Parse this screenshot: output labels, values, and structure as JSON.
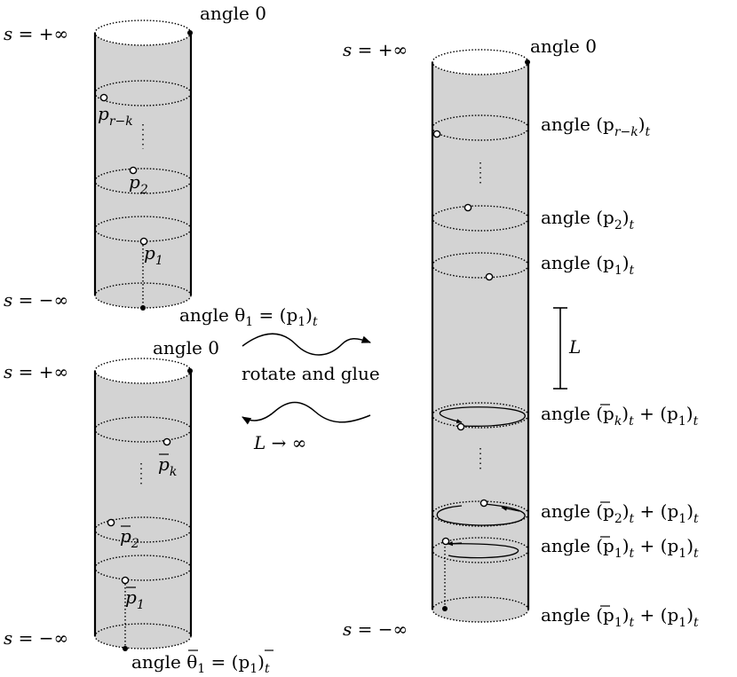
{
  "cylinders": {
    "top_left": {
      "s_plus": "s = +∞",
      "s_minus": "s = −∞",
      "angle_top": "angle 0",
      "angle_bottom_prefix": "angle θ",
      "angle_bottom_sub": "1",
      "angle_bottom_mid": " = (p",
      "angle_bottom_sub2": "1",
      "angle_bottom_end": ")",
      "angle_bottom_t": "t",
      "points": {
        "p_rk_base": "p",
        "p_rk_sub": "r−k",
        "p2_base": "p",
        "p2_sub": "2",
        "p1_base": "p",
        "p1_sub": "1"
      }
    },
    "bottom_left": {
      "s_plus": "s = +∞",
      "s_minus": "s = −∞",
      "angle_top": "angle 0",
      "angle_bottom_prefix": "angle θ",
      "angle_bottom_sub": "1",
      "angle_bottom_mid": " = (p",
      "angle_bottom_sub2": "1",
      "angle_bottom_end": ")",
      "angle_bottom_t": "t",
      "points": {
        "pk_base": "p",
        "pk_sub": "k",
        "p2_base": "p",
        "p2_sub": "2",
        "p1_base": "p",
        "p1_sub": "1"
      }
    },
    "right": {
      "s_plus": "s = +∞",
      "s_minus": "s = −∞",
      "angle_top": "angle 0",
      "length_label": "L",
      "angles": {
        "p_rk": {
          "pre": "angle (p",
          "sub": "r−k",
          "post": ")",
          "t": "t"
        },
        "p2": {
          "pre": "angle (p",
          "sub": "2",
          "post": ")",
          "t": "t"
        },
        "p1": {
          "pre": "angle (p",
          "sub": "1",
          "post": ")",
          "t": "t"
        },
        "pbk": {
          "pre": "angle (p",
          "sub": "k",
          "mid": ")",
          "t": "t",
          "plus": " + (p",
          "sub2": "1",
          "post": ")",
          "t2": "t"
        },
        "pb2": {
          "pre": "angle (p",
          "sub": "2",
          "mid": ")",
          "t": "t",
          "plus": " + (p",
          "sub2": "1",
          "post": ")",
          "t2": "t"
        },
        "pb1": {
          "pre": "angle (p",
          "sub": "1",
          "mid": ")",
          "t": "t",
          "plus": " + (p",
          "sub2": "1",
          "post": ")",
          "t2": "t"
        },
        "pb1_bottom": {
          "pre": "angle (p",
          "sub": "1",
          "mid": ")",
          "t": "t",
          "plus": " + (p",
          "sub2": "1",
          "post": ")",
          "t2": "t"
        }
      }
    }
  },
  "arrows": {
    "forward": "rotate and glue",
    "backward": "L → ∞"
  },
  "colors": {
    "fill": "#d3d3d3",
    "stroke": "#000000"
  }
}
